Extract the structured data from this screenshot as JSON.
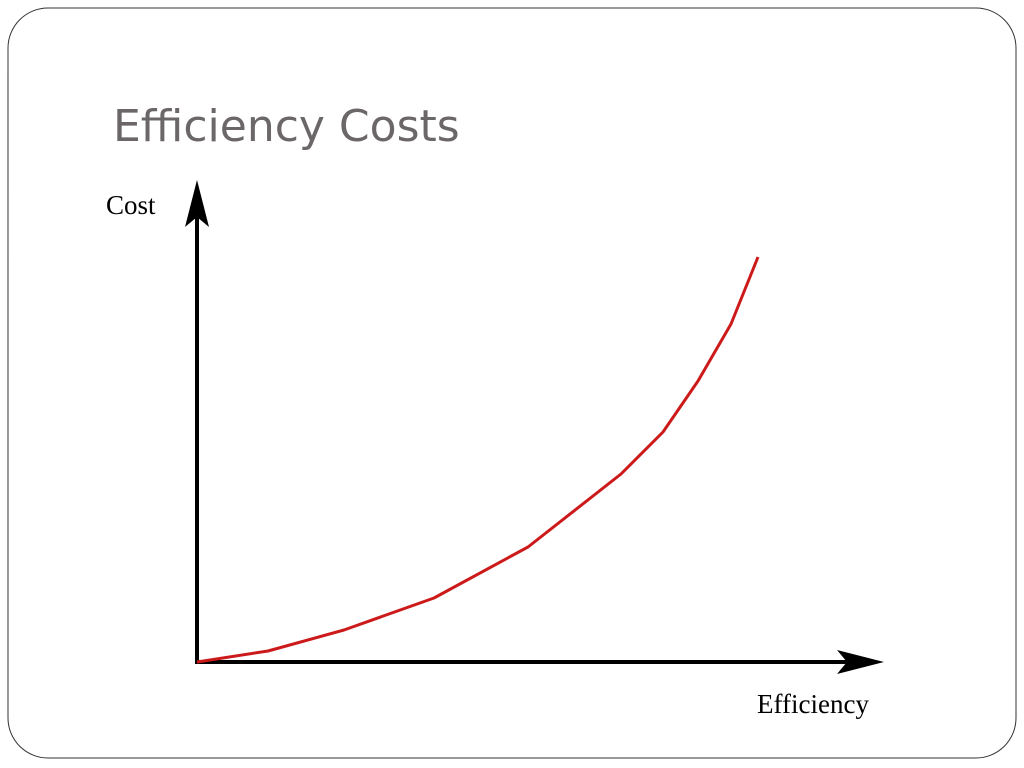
{
  "slide": {
    "title": "Efficiency Costs"
  },
  "diagram": {
    "y_axis_label": "Cost",
    "x_axis_label": "Efficiency"
  }
}
